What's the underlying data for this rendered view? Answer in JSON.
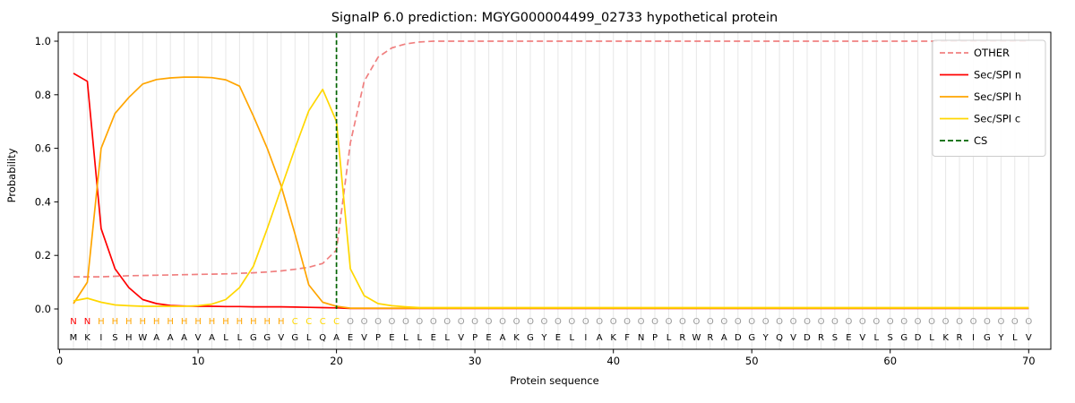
{
  "chart_data": {
    "type": "line",
    "title": "SignalP 6.0 prediction: MGYG000004499_02733 hypothetical protein",
    "xlabel": "Protein sequence",
    "ylabel": "Probability",
    "xticks": [
      0,
      10,
      20,
      30,
      40,
      50,
      60,
      70
    ],
    "yticks": [
      0.0,
      0.2,
      0.4,
      0.6,
      0.8,
      1.0
    ],
    "xlim": [
      -0.1,
      71.6
    ],
    "ylim": [
      -0.15,
      1.03
    ],
    "grid": "vertical-per-residue",
    "legend_position": "upper right",
    "x_start": 1,
    "sequence": "MKISHWAAAVALLGGVGLQAEVPELLELVPEAKGYELIAKFNPLRWRADGYQVDRSEVLSGDLKRIGYLV",
    "region_labels": "NNHHHHHHHHHHHHHHCCCCOOOOOOOOOOOOOOOOOOOOOOOOOOOOOOOOOOOOOOOOOOOOOOOOOO",
    "residue_label_colors": {
      "N": "#ff0000",
      "H": "#ffa500",
      "C": "#ffd700",
      "O": "#999999",
      "sequence": "#000000"
    },
    "cs": {
      "label": "CS",
      "position": 20,
      "color": "#006400",
      "dash": true
    },
    "series": [
      {
        "name": "OTHER",
        "color": "#f08080",
        "dash": true,
        "values": [
          0.12,
          0.12,
          0.12,
          0.122,
          0.124,
          0.125,
          0.126,
          0.127,
          0.128,
          0.129,
          0.13,
          0.131,
          0.133,
          0.135,
          0.138,
          0.142,
          0.148,
          0.156,
          0.17,
          0.22,
          0.62,
          0.85,
          0.94,
          0.975,
          0.99,
          0.997,
          1.0,
          1.0,
          1.0,
          1.0,
          1.0,
          1.0,
          1.0,
          1.0,
          1.0,
          1.0,
          1.0,
          1.0,
          1.0,
          1.0,
          1.0,
          1.0,
          1.0,
          1.0,
          1.0,
          1.0,
          1.0,
          1.0,
          1.0,
          1.0,
          1.0,
          1.0,
          1.0,
          1.0,
          1.0,
          1.0,
          1.0,
          1.0,
          1.0,
          1.0,
          1.0,
          1.0,
          1.0,
          1.0,
          1.0,
          1.0,
          1.0,
          1.0,
          1.0,
          1.0
        ]
      },
      {
        "name": "Sec/SPI n",
        "color": "#ff0000",
        "dash": false,
        "values": [
          0.88,
          0.85,
          0.3,
          0.15,
          0.08,
          0.035,
          0.02,
          0.013,
          0.011,
          0.01,
          0.01,
          0.009,
          0.009,
          0.008,
          0.008,
          0.008,
          0.007,
          0.006,
          0.005,
          0.004,
          0.002,
          0.002,
          0.002,
          0.002,
          0.002,
          0.002,
          0.002,
          0.002,
          0.002,
          0.002,
          0.002,
          0.002,
          0.002,
          0.002,
          0.002,
          0.002,
          0.002,
          0.002,
          0.002,
          0.002,
          0.002,
          0.002,
          0.002,
          0.002,
          0.002,
          0.002,
          0.002,
          0.002,
          0.002,
          0.002,
          0.002,
          0.002,
          0.002,
          0.002,
          0.002,
          0.002,
          0.002,
          0.002,
          0.002,
          0.002,
          0.002,
          0.002,
          0.002,
          0.002,
          0.002,
          0.002,
          0.002,
          0.002,
          0.002,
          0.002
        ]
      },
      {
        "name": "Sec/SPI h",
        "color": "#ffa500",
        "dash": false,
        "values": [
          0.02,
          0.1,
          0.6,
          0.73,
          0.79,
          0.84,
          0.857,
          0.863,
          0.866,
          0.866,
          0.864,
          0.856,
          0.832,
          0.72,
          0.6,
          0.46,
          0.28,
          0.09,
          0.025,
          0.01,
          0.003,
          0.003,
          0.003,
          0.003,
          0.003,
          0.003,
          0.003,
          0.003,
          0.003,
          0.003,
          0.003,
          0.003,
          0.003,
          0.003,
          0.003,
          0.003,
          0.003,
          0.003,
          0.003,
          0.003,
          0.003,
          0.003,
          0.003,
          0.003,
          0.003,
          0.003,
          0.003,
          0.003,
          0.003,
          0.003,
          0.003,
          0.003,
          0.003,
          0.003,
          0.003,
          0.003,
          0.003,
          0.003,
          0.003,
          0.003,
          0.003,
          0.003,
          0.003,
          0.003,
          0.003,
          0.003,
          0.003,
          0.003,
          0.003,
          0.003
        ]
      },
      {
        "name": "Sec/SPI c",
        "color": "#ffd700",
        "dash": false,
        "values": [
          0.03,
          0.04,
          0.025,
          0.015,
          0.012,
          0.01,
          0.01,
          0.01,
          0.01,
          0.012,
          0.018,
          0.035,
          0.08,
          0.16,
          0.3,
          0.45,
          0.6,
          0.74,
          0.82,
          0.7,
          0.15,
          0.05,
          0.02,
          0.012,
          0.008,
          0.005,
          0.005,
          0.005,
          0.005,
          0.005,
          0.005,
          0.005,
          0.005,
          0.005,
          0.005,
          0.005,
          0.005,
          0.005,
          0.005,
          0.005,
          0.005,
          0.005,
          0.005,
          0.005,
          0.005,
          0.005,
          0.005,
          0.005,
          0.005,
          0.005,
          0.005,
          0.005,
          0.005,
          0.005,
          0.005,
          0.005,
          0.005,
          0.005,
          0.005,
          0.005,
          0.005,
          0.005,
          0.005,
          0.005,
          0.005,
          0.005,
          0.005,
          0.005,
          0.005,
          0.005
        ]
      }
    ]
  }
}
